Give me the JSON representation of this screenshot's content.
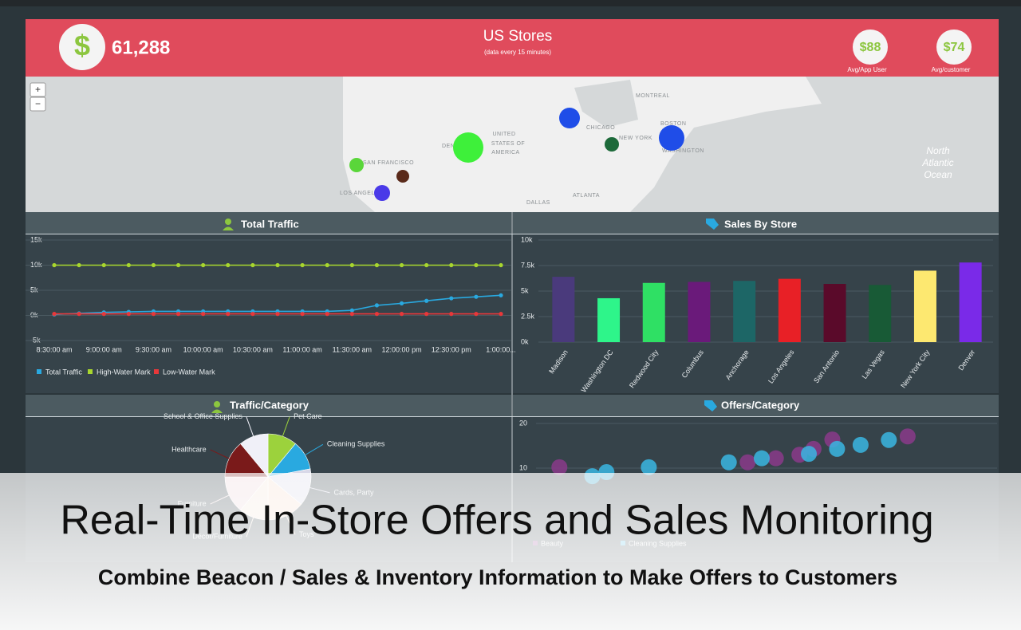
{
  "header": {
    "total": "61,288",
    "title": "US Stores",
    "subtitle": "(data every 15 minutes)",
    "kpis": [
      {
        "value": "$88",
        "label": "Avg/App User"
      },
      {
        "value": "$74",
        "label": "Avg/customer"
      }
    ]
  },
  "map": {
    "zoom_in": "+",
    "zoom_out": "−",
    "labels": [
      "UNITED",
      "STATES OF",
      "AMERICA",
      "SAN FRANCISCO",
      "LOS ANGELES",
      "DEN",
      "CHICAGO",
      "NEW YORK",
      "MONTREAL",
      "BOSTON",
      "WASHINGTON",
      "ATLANTA",
      "DALLAS",
      "North",
      "Atlantic",
      "Ocean"
    ]
  },
  "chart_data": [
    {
      "type": "line",
      "title": "Total Traffic",
      "categories": [
        "8:30:00 am",
        null,
        "9:00:00 am",
        null,
        "9:30:00 am",
        null,
        "10:00:00 am",
        null,
        "10:30:00 am",
        null,
        "11:00:00 am",
        null,
        "11:30:00 am",
        null,
        "12:00:00 pm",
        null,
        "12:30:00 pm",
        null,
        "1:00:00..."
      ],
      "ylim": [
        -5000,
        15000
      ],
      "yticks": [
        {
          "value": -5000,
          "label": "-5k"
        },
        {
          "value": 0,
          "label": "0k"
        },
        {
          "value": 5000,
          "label": "5k"
        },
        {
          "value": 10000,
          "label": "10k"
        },
        {
          "value": 15000,
          "label": "15k"
        }
      ],
      "grid": true,
      "legend": "bottom-left",
      "series": [
        {
          "name": "Total Traffic",
          "color": "#29a9e0",
          "values": [
            200,
            400,
            600,
            700,
            800,
            800,
            800,
            800,
            800,
            800,
            800,
            800,
            1000,
            2000,
            2400,
            2900,
            3400,
            3700,
            4000
          ]
        },
        {
          "name": "High-Water Mark",
          "color": "#a8d62e",
          "values": [
            10000,
            10000,
            10000,
            10000,
            10000,
            10000,
            10000,
            10000,
            10000,
            10000,
            10000,
            10000,
            10000,
            10000,
            10000,
            10000,
            10000,
            10000,
            10000
          ]
        },
        {
          "name": "Low-Water Mark",
          "color": "#e8383a",
          "values": [
            300,
            300,
            300,
            300,
            300,
            300,
            300,
            300,
            300,
            300,
            300,
            300,
            300,
            300,
            300,
            300,
            300,
            300,
            300
          ]
        }
      ]
    },
    {
      "type": "bar",
      "title": "Sales By Store",
      "categories": [
        "Madison",
        "Washington DC",
        "Redwood City",
        "Columbus",
        "Anchorage",
        "Los Angeles",
        "San Antonio",
        "Las Vegas",
        "New York City",
        "Denver"
      ],
      "values": [
        6400,
        4300,
        5800,
        5900,
        6000,
        6200,
        5700,
        5600,
        7000,
        7800
      ],
      "colors": [
        "#4a3a7c",
        "#2ef58a",
        "#2fe064",
        "#6a1a7a",
        "#1d6666",
        "#e82026",
        "#5a0a2a",
        "#185a36",
        "#fde870",
        "#7a2ae8"
      ],
      "ylim": [
        0,
        10000
      ],
      "yticks": [
        {
          "value": 0,
          "label": "0k"
        },
        {
          "value": 2500,
          "label": "2.5k"
        },
        {
          "value": 5000,
          "label": "5k"
        },
        {
          "value": 7500,
          "label": "7.5k"
        },
        {
          "value": 10000,
          "label": "10k"
        }
      ],
      "grid": true
    },
    {
      "type": "pie",
      "title": "Traffic/Category",
      "categories": [
        "Pet Care",
        "Cleaning Supplies",
        "Cards, Party",
        "Toys",
        "Décor/Furniture",
        "Furniture",
        "Healthcare",
        "School & Office Supplies"
      ],
      "values": [
        11,
        11,
        14,
        14,
        11,
        14,
        14,
        11
      ],
      "colors": [
        "#9cd23c",
        "#29a9e0",
        "#d8d8e8",
        "#f6dccc",
        "#f4e4d8",
        "#ecd4d8",
        "#7a1a1a",
        "#f0f0f8"
      ]
    },
    {
      "type": "scatter",
      "title": "Offers/Category",
      "xlim": [
        0,
        100
      ],
      "ylim": [
        0,
        20
      ],
      "yticks": [
        10,
        20
      ],
      "grid": true,
      "series": [
        {
          "name": "Beauty",
          "color": "#8a3a8a",
          "x": [
            7,
            47,
            53,
            58,
            61,
            65,
            81
          ],
          "values": [
            10.2,
            11.3,
            12.2,
            13,
            14.3,
            16.4,
            17.1
          ]
        },
        {
          "name": "Cleaning Supplies",
          "color": "#3ab6e2",
          "x": [
            14,
            17,
            26,
            43,
            50,
            60,
            66,
            71,
            77
          ],
          "values": [
            8.2,
            9.1,
            10.2,
            11.3,
            12.2,
            13.2,
            14.3,
            15.2,
            16.3
          ]
        }
      ]
    }
  ],
  "overlay": {
    "title": "Real-Time In-Store Offers and Sales Monitoring",
    "subtitle": "Combine Beacon / Sales & Inventory Information to Make Offers to Customers"
  }
}
